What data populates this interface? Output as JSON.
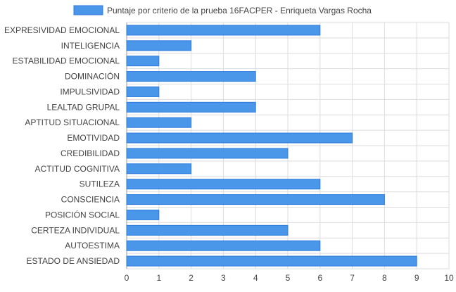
{
  "chart_data": {
    "type": "bar",
    "orientation": "horizontal",
    "legend_position": "top",
    "grid": true,
    "colors": {
      "bar_fill": "#4a97ea",
      "bar_stroke": "#2d7bdc",
      "grid": "#dcdcdc",
      "axis": "#9a9a9a",
      "text": "#444444"
    },
    "categories": [
      "EXPRESIVIDAD EMOCIONAL",
      "INTELIGENCIA",
      "ESTABILIDAD EMOCIONAL",
      "DOMINACIÓN",
      "IMPULSIVIDAD",
      "LEALTAD GRUPAL",
      "APTITUD SITUACIONAL",
      "EMOTIVIDAD",
      "CREDIBILIDAD",
      "ACTITUD COGNITIVA",
      "SUTILEZA",
      "CONSCIENCIA",
      "POSICIÓN SOCIAL",
      "CERTEZA INDIVIDUAL",
      "AUTOESTIMA",
      "ESTADO DE ANSIEDAD"
    ],
    "series": [
      {
        "name": "Puntaje por criterio de la prueba 16FACPER -  Enriqueta Vargas Rocha",
        "values": [
          6,
          2,
          1,
          4,
          1,
          4,
          2,
          7,
          5,
          2,
          6,
          8,
          1,
          5,
          6,
          9
        ]
      }
    ],
    "xlim": [
      0,
      10
    ],
    "xticks": [
      "0",
      "1",
      "2",
      "3",
      "4",
      "5",
      "6",
      "7",
      "8",
      "9",
      "10"
    ]
  }
}
